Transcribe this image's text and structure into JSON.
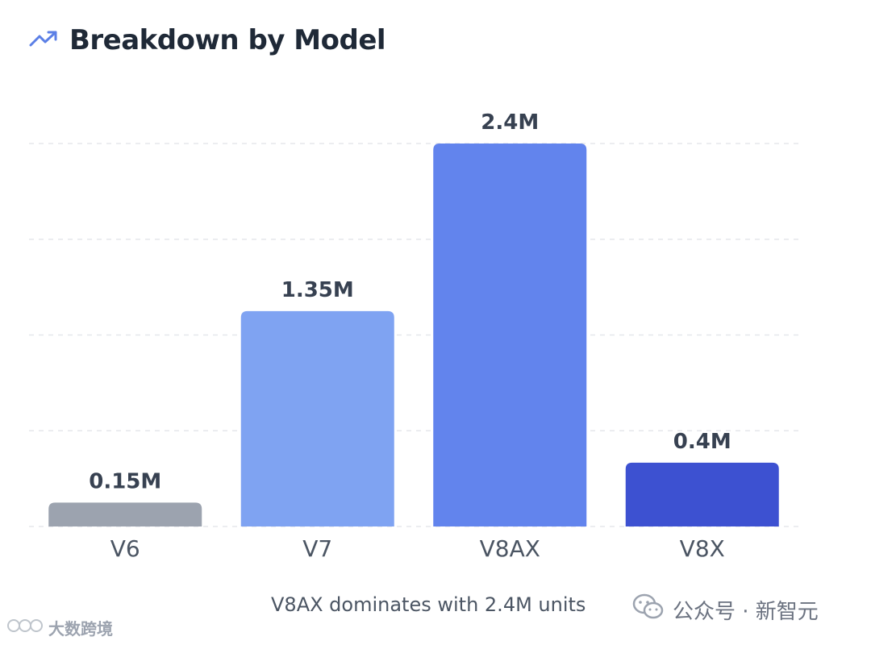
{
  "header": {
    "title": "Breakdown by Model",
    "icon": "trending-up-icon"
  },
  "chart_data": {
    "type": "bar",
    "categories": [
      "V6",
      "V7",
      "V8AX",
      "V8X"
    ],
    "values": [
      0.15,
      1.35,
      2.4,
      0.4
    ],
    "value_labels": [
      "0.15M",
      "1.35M",
      "2.4M",
      "0.4M"
    ],
    "colors": [
      "#9ca3af",
      "#7fa3f2",
      "#6284ed",
      "#3d51d1"
    ],
    "ylim": [
      0,
      2.4
    ],
    "yticks": [
      0,
      0.6,
      1.2,
      1.8,
      2.4
    ],
    "grid": true,
    "title": "Breakdown by Model",
    "xlabel": "",
    "ylabel": ""
  },
  "caption": "V8AX dominates with 2.4M units",
  "watermark": {
    "source": "公众号 · 新智元",
    "bottom_mark": "大数跨境"
  }
}
